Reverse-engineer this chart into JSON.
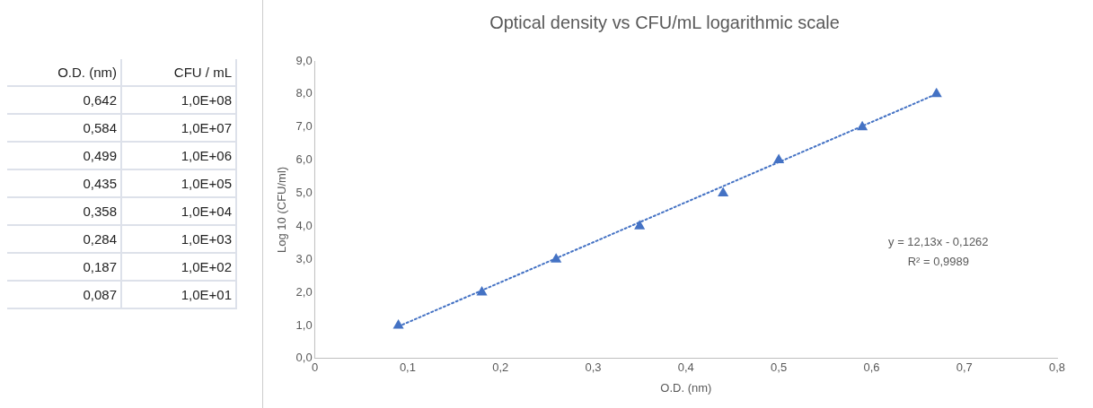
{
  "chart_data": [
    {
      "type": "other",
      "annotations": [
        "O.D. (nm)",
        "CFU / mL",
        "0,642",
        "1,0E+08",
        "0,584",
        "1,0E+07",
        "0,499",
        "1,0E+06",
        "0,435",
        "1,0E+05",
        "0,358",
        "1,0E+04",
        "0,284",
        "1,0E+03",
        "0,187",
        "1,0E+02",
        "0,087",
        "1,0E+01"
      ]
    },
    {
      "type": "scatter",
      "title": "Optical density vs CFU/mL logarithmic scale",
      "xlabel": "O.D. (nm)",
      "ylabel": "Log 10 (CFU/ml)",
      "legend": false,
      "grid": false,
      "series": [
        {
          "type": "scatter",
          "color": "#4472c4",
          "marker": "triangle",
          "x": [
            0.09,
            0.18,
            0.26,
            0.35,
            0.44,
            0.5,
            0.59,
            0.67
          ],
          "values": [
            1,
            2,
            3,
            4,
            5,
            6,
            7,
            8
          ]
        },
        {
          "type": "line",
          "color": "#4472c4",
          "marker": "none",
          "line_style": "dotted",
          "x": [
            0.09,
            0.67
          ],
          "values": [
            0.97,
            8.0
          ]
        }
      ],
      "xlim": [
        0,
        0.8
      ],
      "xticks": [
        0,
        {
          "value": 0.1,
          "label": "0,1"
        },
        {
          "value": 0.2,
          "label": "0,2"
        },
        {
          "value": 0.3,
          "label": "0,3"
        },
        {
          "value": 0.4,
          "label": "0,4"
        },
        {
          "value": 0.5,
          "label": "0,5"
        },
        {
          "value": 0.6,
          "label": "0,6"
        },
        {
          "value": 0.7,
          "label": "0,7"
        },
        {
          "value": 0.8,
          "label": "0,8"
        }
      ],
      "ylim": [
        0,
        9
      ],
      "yticks": [
        {
          "value": 0,
          "label": "0,0"
        },
        {
          "value": 1,
          "label": "1,0"
        },
        {
          "value": 2,
          "label": "2,0"
        },
        {
          "value": 3,
          "label": "3,0"
        },
        {
          "value": 4,
          "label": "4,0"
        },
        {
          "value": 5,
          "label": "5,0"
        },
        {
          "value": 6,
          "label": "6,0"
        },
        {
          "value": 7,
          "label": "7,0"
        },
        {
          "value": 8,
          "label": "8,0"
        },
        {
          "value": 9,
          "label": "9,0"
        }
      ],
      "annotations": [
        "y = 12,13x - 0,1262",
        "R² = 0,9989"
      ]
    }
  ]
}
